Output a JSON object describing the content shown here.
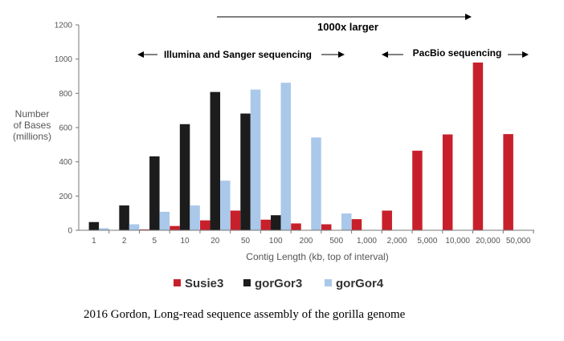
{
  "chart_data": {
    "type": "bar",
    "ylabel": [
      "Number",
      "of Bases",
      "(millions)"
    ],
    "xlabel": "Contig Length (kb, top of interval)",
    "ylim": [
      0,
      1200
    ],
    "yticks": [
      0,
      200,
      400,
      600,
      800,
      1000,
      1200
    ],
    "categories": [
      "1",
      "2",
      "5",
      "10",
      "20",
      "50",
      "100",
      "200",
      "500",
      "1,000",
      "2,000",
      "5,000",
      "10,000",
      "20,000",
      "50,000"
    ],
    "series": [
      {
        "name": "Susie3",
        "color": "#c8202b",
        "values": [
          0,
          0,
          5,
          25,
          58,
          115,
          62,
          40,
          35,
          65,
          115,
          465,
          560,
          980,
          562
        ]
      },
      {
        "name": "gorGor3",
        "color": "#1c1c1c",
        "values": [
          48,
          145,
          432,
          620,
          808,
          682,
          88,
          0,
          0,
          0,
          0,
          0,
          0,
          0,
          0
        ]
      },
      {
        "name": "gorGor4",
        "color": "#a9c8ea",
        "values": [
          12,
          35,
          108,
          145,
          290,
          822,
          862,
          542,
          98,
          0,
          0,
          0,
          0,
          0,
          0
        ]
      }
    ],
    "annotations": {
      "top_arrow": "1000x larger",
      "left_range": "Illumina and Sanger sequencing",
      "right_range": "PacBio sequencing"
    },
    "grid": false,
    "legend_position": "bottom"
  },
  "caption": "2016 Gordon, Long-read sequence assembly of the gorilla genome"
}
